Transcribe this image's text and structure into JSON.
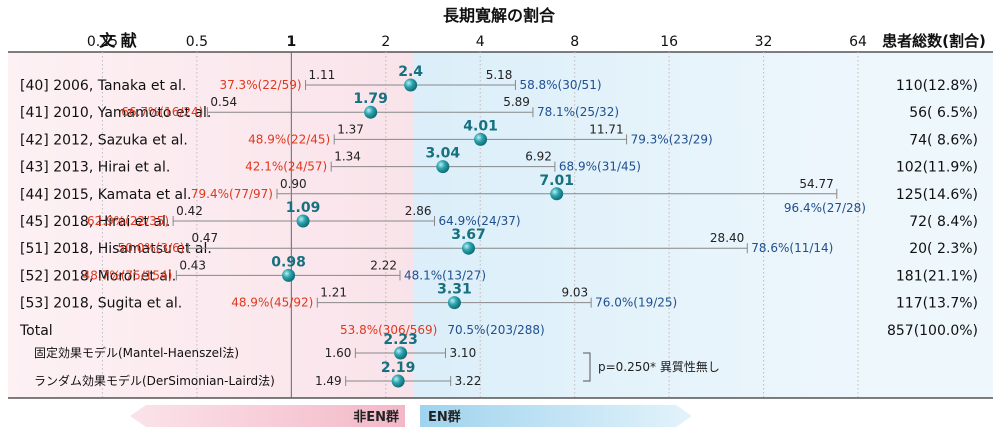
{
  "header": {
    "title": "長期寛解の割合",
    "study_col": "文 献",
    "count_col": "患者総数(割合)"
  },
  "colors": {
    "left_bg": "#fbe9ee",
    "right_bg": "#e3f1fa",
    "red_text": "#e0381f",
    "blue_text": "#1f4f8f",
    "teal_text": "#17707f",
    "marker": "#2a9aa6",
    "ci_line": "#888888"
  },
  "chart_data": {
    "type": "forest",
    "x_scale": "log2",
    "xlim": [
      0.125,
      64
    ],
    "reference_line": 1,
    "ticks": [
      {
        "value": 0.25,
        "label": "0.25"
      },
      {
        "value": 0.5,
        "label": "0.5"
      },
      {
        "value": 1,
        "label": "1"
      },
      {
        "value": 2,
        "label": "2"
      },
      {
        "value": 4,
        "label": "4"
      },
      {
        "value": 8,
        "label": "8"
      },
      {
        "value": 16,
        "label": "16"
      },
      {
        "value": 32,
        "label": "32"
      },
      {
        "value": 64,
        "label": "64"
      }
    ],
    "studies": [
      {
        "label": "[40] 2006, Tanaka et al.",
        "ratio": 2.4,
        "ratio_label": "2.4",
        "lower": 1.11,
        "lower_label": "1.11",
        "upper": 5.18,
        "upper_label": "5.18",
        "non_en": "37.3%(22/59)",
        "en": "58.8%(30/51)",
        "total": "110(12.8%)"
      },
      {
        "label": "[41] 2010, Yamamoto et al.",
        "ratio": 1.79,
        "ratio_label": "1.79",
        "lower": 0.54,
        "lower_label": "0.54",
        "upper": 5.89,
        "upper_label": "5.89",
        "non_en": "66.7%(16/24)",
        "en": "78.1%(25/32)",
        "total": "56( 6.5%)"
      },
      {
        "label": "[42] 2012, Sazuka et al.",
        "ratio": 4.01,
        "ratio_label": "4.01",
        "lower": 1.37,
        "lower_label": "1.37",
        "upper": 11.71,
        "upper_label": "11.71",
        "non_en": "48.9%(22/45)",
        "en": "79.3%(23/29)",
        "total": "74( 8.6%)"
      },
      {
        "label": "[43] 2013, Hirai et al.",
        "ratio": 3.04,
        "ratio_label": "3.04",
        "lower": 1.34,
        "lower_label": "1.34",
        "upper": 6.92,
        "upper_label": "6.92",
        "non_en": "42.1%(24/57)",
        "en": "68.9%(31/45)",
        "total": "102(11.9%)"
      },
      {
        "label": "[44] 2015, Kamata et al.",
        "ratio": 7.01,
        "ratio_label": "7.01",
        "lower": 0.9,
        "lower_label": "0.90",
        "upper": 54.77,
        "upper_label": "54.77",
        "non_en": "79.4%(77/97)",
        "en": "96.4%(27/28)",
        "total": "125(14.6%)"
      },
      {
        "label": "[45] 2018, Hirai et al.",
        "ratio": 1.09,
        "ratio_label": "1.09",
        "lower": 0.42,
        "lower_label": "0.42",
        "upper": 2.86,
        "upper_label": "2.86",
        "non_en": "62.9%(22/35)",
        "en": "64.9%(24/37)",
        "total": "72( 8.4%)"
      },
      {
        "label": "[51] 2018, Hisamatsu et al.",
        "ratio": 3.67,
        "ratio_label": "3.67",
        "lower": 0.47,
        "lower_label": "0.47",
        "upper": 28.4,
        "upper_label": "28.40",
        "non_en": "50.0%(3/6)",
        "en": "78.6%(11/14)",
        "total": "20( 2.3%)"
      },
      {
        "label": "[52] 2018, Moroi et al.",
        "ratio": 0.98,
        "ratio_label": "0.98",
        "lower": 0.43,
        "lower_label": "0.43",
        "upper": 2.22,
        "upper_label": "2.22",
        "non_en": "48.7%(75/154)",
        "en": "48.1%(13/27)",
        "total": "181(21.1%)"
      },
      {
        "label": "[53] 2018, Sugita et al.",
        "ratio": 3.31,
        "ratio_label": "3.31",
        "lower": 1.21,
        "lower_label": "1.21",
        "upper": 9.03,
        "upper_label": "9.03",
        "non_en": "48.9%(45/92)",
        "en": "76.0%(19/25)",
        "total": "117(13.7%)"
      }
    ],
    "total": {
      "label": "Total",
      "non_en": "53.8%(306/569)",
      "en": "70.5%(203/288)",
      "total": "857(100.0%)"
    },
    "models": [
      {
        "label": "固定効果モデル(Mantel-Haenszel法)",
        "ratio": 2.23,
        "ratio_label": "2.23",
        "lower": 1.6,
        "lower_label": "1.60",
        "upper": 3.1,
        "upper_label": "3.10"
      },
      {
        "label": "ランダム効果モデル(DerSimonian-Laird法)",
        "ratio": 2.19,
        "ratio_label": "2.19",
        "lower": 1.49,
        "lower_label": "1.49",
        "upper": 3.22,
        "upper_label": "3.22"
      }
    ],
    "heterogeneity": "p=0.250* 異質性無し",
    "arrows": {
      "left": "非EN群",
      "right": "EN群"
    }
  }
}
